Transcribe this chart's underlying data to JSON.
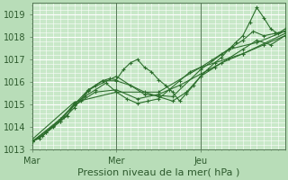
{
  "xlabel": "Pression niveau de la mer( hPa )",
  "bg_color": "#b8ddb8",
  "plot_bg_color": "#c8e8c8",
  "grid_major_color": "#ffffff",
  "grid_minor_color": "#ddeedd",
  "line_color": "#2d6e2d",
  "marker_color": "#2d6e2d",
  "vline_color": "#557755",
  "ylim": [
    1013,
    1019.5
  ],
  "xlim": [
    0,
    72
  ],
  "xtick_positions": [
    0,
    24,
    48
  ],
  "xticklabels": [
    "Mar",
    "Mer",
    "Jeu"
  ],
  "yticks": [
    1013,
    1014,
    1015,
    1016,
    1017,
    1018,
    1019
  ],
  "vlines": [
    0,
    24,
    48
  ],
  "series": [
    [
      0,
      1013.35,
      2,
      1013.5,
      4,
      1013.75,
      6,
      1014.0,
      8,
      1014.25,
      10,
      1014.5,
      12,
      1015.0,
      14,
      1015.15,
      16,
      1015.6,
      18,
      1015.85,
      20,
      1016.05,
      22,
      1016.15,
      24,
      1016.1,
      26,
      1016.55,
      28,
      1016.85,
      30,
      1017.0,
      32,
      1016.65,
      34,
      1016.45,
      36,
      1016.1,
      38,
      1015.85,
      40,
      1015.55,
      42,
      1015.15,
      44,
      1015.5,
      46,
      1015.85,
      48,
      1016.25,
      50,
      1016.55,
      52,
      1016.85,
      54,
      1017.1,
      56,
      1017.45,
      58,
      1017.75,
      60,
      1018.05,
      62,
      1018.65,
      64,
      1019.3,
      66,
      1018.85,
      68,
      1018.35,
      70,
      1018.15,
      72,
      1018.35
    ],
    [
      0,
      1013.35,
      3,
      1013.6,
      6,
      1014.05,
      9,
      1014.45,
      12,
      1015.05,
      15,
      1015.35,
      18,
      1015.65,
      21,
      1015.95,
      24,
      1015.55,
      27,
      1015.25,
      30,
      1015.05,
      33,
      1015.15,
      36,
      1015.25,
      39,
      1015.65,
      42,
      1016.05,
      45,
      1016.45,
      48,
      1016.65,
      51,
      1016.95,
      54,
      1017.25,
      57,
      1017.55,
      60,
      1017.85,
      63,
      1018.25,
      66,
      1018.05,
      69,
      1018.15,
      72,
      1018.25
    ],
    [
      0,
      1013.35,
      4,
      1013.75,
      8,
      1014.25,
      12,
      1014.85,
      16,
      1015.65,
      20,
      1016.05,
      24,
      1016.05,
      28,
      1015.85,
      32,
      1015.55,
      36,
      1015.35,
      40,
      1015.15,
      44,
      1015.55,
      48,
      1016.25,
      52,
      1016.65,
      56,
      1017.05,
      60,
      1017.45,
      64,
      1017.85,
      68,
      1017.65,
      72,
      1018.05
    ],
    [
      0,
      1013.35,
      6,
      1014.05,
      12,
      1014.95,
      18,
      1015.55,
      24,
      1015.65,
      30,
      1015.25,
      36,
      1015.45,
      42,
      1015.85,
      48,
      1016.35,
      54,
      1016.85,
      60,
      1017.25,
      66,
      1017.65,
      72,
      1018.05
    ],
    [
      0,
      1013.35,
      8,
      1014.35,
      16,
      1015.65,
      24,
      1016.25,
      32,
      1015.45,
      40,
      1015.35,
      48,
      1016.55,
      56,
      1017.45,
      64,
      1017.75,
      72,
      1018.25
    ],
    [
      0,
      1013.45,
      12,
      1015.1,
      24,
      1015.55,
      36,
      1015.55,
      48,
      1016.65,
      60,
      1017.25,
      72,
      1018.15
    ]
  ]
}
